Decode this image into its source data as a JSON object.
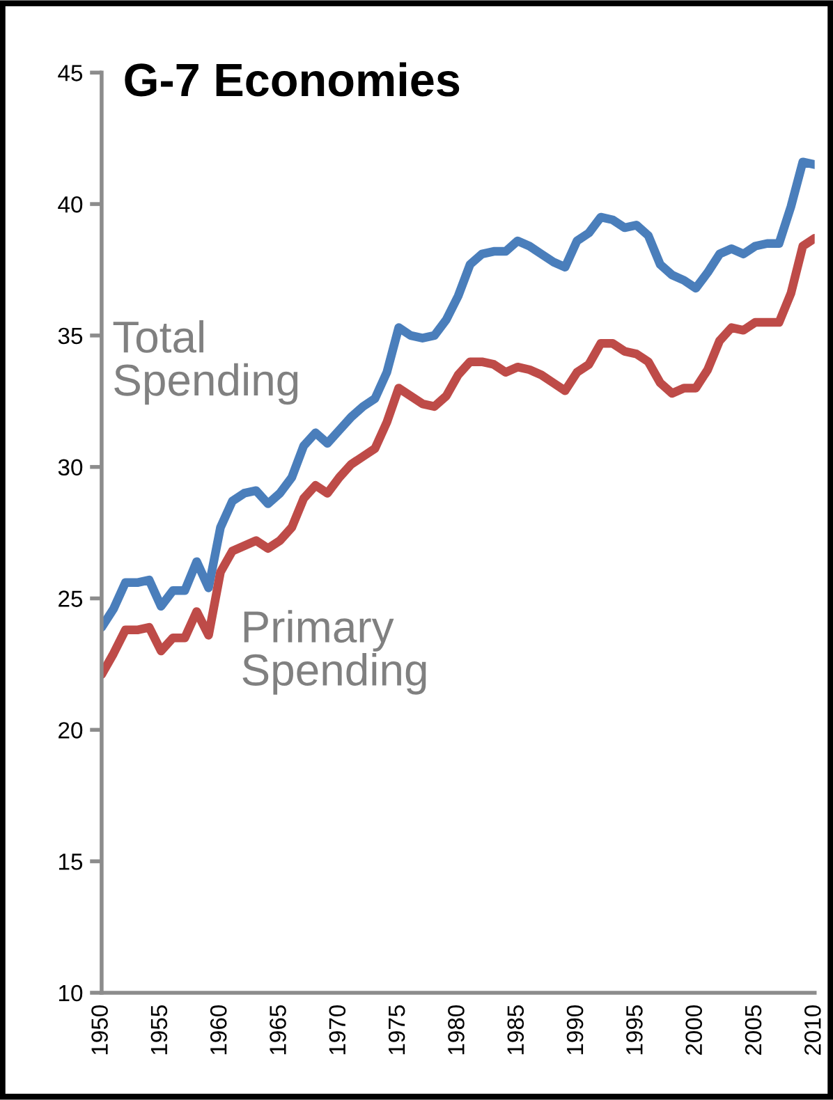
{
  "chart_data": {
    "type": "line",
    "title": "G-7 Economies",
    "x": [
      1950,
      1951,
      1952,
      1953,
      1954,
      1955,
      1956,
      1957,
      1958,
      1959,
      1960,
      1961,
      1962,
      1963,
      1964,
      1965,
      1966,
      1967,
      1968,
      1969,
      1970,
      1971,
      1972,
      1973,
      1974,
      1975,
      1976,
      1977,
      1978,
      1979,
      1980,
      1981,
      1982,
      1983,
      1984,
      1985,
      1986,
      1987,
      1988,
      1989,
      1990,
      1991,
      1992,
      1993,
      1994,
      1995,
      1996,
      1997,
      1998,
      1999,
      2000,
      2001,
      2002,
      2003,
      2004,
      2005,
      2006,
      2007,
      2008,
      2009,
      2010
    ],
    "series": [
      {
        "name": "Total Spending",
        "color": "#4a7ebb",
        "values": [
          23.9,
          24.6,
          25.6,
          25.6,
          25.7,
          24.7,
          25.3,
          25.3,
          26.4,
          25.4,
          27.7,
          28.7,
          29.0,
          29.1,
          28.6,
          29.0,
          29.6,
          30.8,
          31.3,
          30.9,
          31.4,
          31.9,
          32.3,
          32.6,
          33.6,
          35.3,
          35.0,
          34.9,
          35.0,
          35.6,
          36.5,
          37.7,
          38.1,
          38.2,
          38.2,
          38.6,
          38.4,
          38.1,
          37.8,
          37.6,
          38.6,
          38.9,
          39.5,
          39.4,
          39.1,
          39.2,
          38.8,
          37.7,
          37.3,
          37.1,
          36.8,
          37.4,
          38.1,
          38.3,
          38.1,
          38.4,
          38.5,
          38.5,
          39.9,
          41.6,
          41.5
        ]
      },
      {
        "name": "Primary Spending",
        "color": "#be4b48",
        "values": [
          22.1,
          22.9,
          23.8,
          23.8,
          23.9,
          23.0,
          23.5,
          23.5,
          24.5,
          23.6,
          26.0,
          26.8,
          27.0,
          27.2,
          26.9,
          27.2,
          27.7,
          28.8,
          29.3,
          29.0,
          29.6,
          30.1,
          30.4,
          30.7,
          31.7,
          33.0,
          32.7,
          32.4,
          32.3,
          32.7,
          33.5,
          34.0,
          34.0,
          33.9,
          33.6,
          33.8,
          33.7,
          33.5,
          33.2,
          32.9,
          33.6,
          33.9,
          34.7,
          34.7,
          34.4,
          34.3,
          34.0,
          33.2,
          32.8,
          33.0,
          33.0,
          33.7,
          34.8,
          35.3,
          35.2,
          35.5,
          35.5,
          35.5,
          36.6,
          38.4,
          38.7
        ]
      }
    ],
    "xlim": [
      1950,
      2010
    ],
    "xticks": [
      1950,
      1955,
      1960,
      1965,
      1970,
      1975,
      1980,
      1985,
      1990,
      1995,
      2000,
      2005,
      2010
    ],
    "ylim": [
      10,
      45
    ],
    "yticks": [
      10,
      15,
      20,
      25,
      30,
      35,
      40,
      45
    ],
    "grid": false,
    "legend": false,
    "marker": "none",
    "line_style": "solid"
  }
}
